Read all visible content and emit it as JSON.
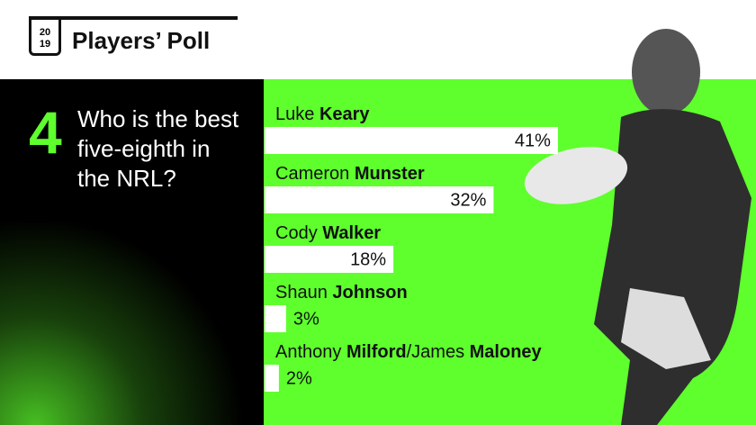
{
  "logo": {
    "year_lines": [
      "20",
      "19"
    ],
    "title": "Players’ Poll"
  },
  "question": {
    "number": "4",
    "text": "Who is the best five-eighth in the NRL?"
  },
  "chart_data": {
    "type": "hbar",
    "categories": [
      [
        "Luke ",
        "Keary"
      ],
      [
        "Cameron ",
        "Munster"
      ],
      [
        "Cody ",
        "Walker"
      ],
      [
        "Shaun ",
        "Johnson"
      ],
      [
        "Anthony ",
        "Milford",
        "/James ",
        "Maloney"
      ]
    ],
    "values": [
      41,
      32,
      18,
      3,
      2
    ],
    "value_labels": [
      "41%",
      "32%",
      "18%",
      "3%",
      "2%"
    ],
    "color": "#ffffff"
  }
}
